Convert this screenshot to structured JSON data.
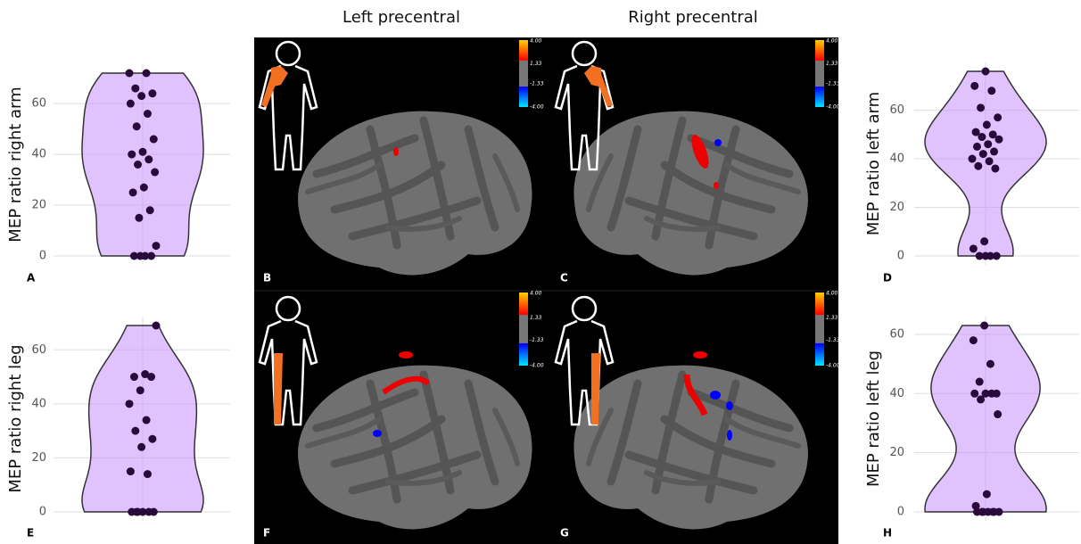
{
  "headers": [
    "Left precentral",
    "Right precentral"
  ],
  "panels": [
    "B",
    "C",
    "F",
    "G"
  ],
  "colorbar": [
    "4.00",
    "1.33",
    "-1.33",
    "-4.00"
  ],
  "chart_data": [
    {
      "type": "violin",
      "panel": "A",
      "y_label": "MEP ratio right arm",
      "color": "#cc99ff",
      "values": [
        72,
        72,
        66,
        64,
        63,
        60,
        56,
        51,
        46,
        41,
        40,
        38,
        36,
        33,
        27,
        25,
        18,
        15,
        4,
        0,
        0,
        0,
        0
      ],
      "ylim": [
        0,
        72
      ],
      "yticks": [
        0,
        20,
        40,
        60
      ],
      "grid": true
    },
    {
      "type": "violin",
      "panel": "D",
      "y_label": "MEP ratio left arm",
      "color": "#cc99ff",
      "values": [
        76,
        70,
        68,
        61,
        57,
        54,
        51,
        50,
        49,
        48,
        46,
        45,
        43,
        42,
        40,
        39,
        37,
        36,
        6,
        3,
        0,
        0,
        0,
        0
      ],
      "ylim": [
        0,
        76
      ],
      "yticks": [
        0,
        20,
        40,
        60
      ],
      "grid": true
    },
    {
      "type": "violin",
      "panel": "E",
      "y_label": "MEP ratio right leg",
      "color": "#cc99ff",
      "values": [
        69,
        51,
        50,
        50,
        45,
        40,
        34,
        30,
        27,
        24,
        15,
        14,
        0,
        0,
        0,
        0,
        0,
        0
      ],
      "ylim": [
        0,
        69
      ],
      "yticks": [
        0,
        20,
        40,
        60
      ],
      "grid": true
    },
    {
      "type": "violin",
      "panel": "H",
      "y_label": "MEP ratio left leg",
      "color": "#cc99ff",
      "values": [
        63,
        58,
        50,
        44,
        40,
        40,
        40,
        40,
        38,
        33,
        6,
        2,
        0,
        0,
        0,
        0,
        0,
        0,
        0
      ],
      "ylim": [
        0,
        63
      ],
      "yticks": [
        0,
        20,
        40,
        60
      ],
      "grid": true
    }
  ]
}
